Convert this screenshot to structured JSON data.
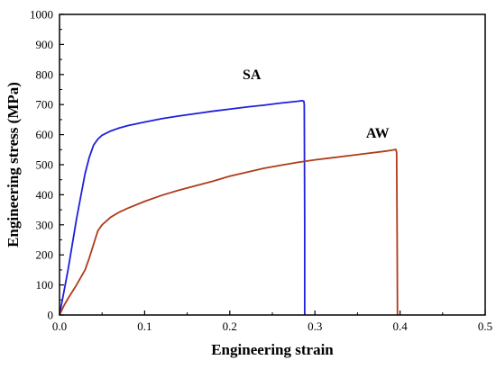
{
  "chart_data": {
    "type": "line",
    "xlabel": "Engineering strain",
    "ylabel": "Engineering stress (MPa)",
    "xlim": [
      0.0,
      0.5
    ],
    "ylim": [
      0,
      1000
    ],
    "xticks": [
      "0.0",
      "0.1",
      "0.2",
      "0.3",
      "0.4",
      "0.5"
    ],
    "yticks": [
      "0",
      "100",
      "200",
      "300",
      "400",
      "500",
      "600",
      "700",
      "800",
      "900",
      "1000"
    ],
    "grid": false,
    "series": [
      {
        "name": "SA",
        "color": "#1f1fdc",
        "label_pos": [
          0.215,
          785
        ],
        "x": [
          0.0,
          0.01,
          0.02,
          0.03,
          0.035,
          0.04,
          0.045,
          0.05,
          0.06,
          0.07,
          0.08,
          0.1,
          0.12,
          0.14,
          0.16,
          0.18,
          0.2,
          0.22,
          0.24,
          0.26,
          0.27,
          0.28,
          0.285,
          0.287,
          0.2875,
          0.288,
          0.288
        ],
        "y": [
          0,
          150,
          320,
          470,
          525,
          565,
          585,
          598,
          612,
          622,
          630,
          642,
          653,
          662,
          670,
          678,
          685,
          692,
          698,
          705,
          708,
          711,
          713,
          711,
          700,
          300,
          0
        ]
      },
      {
        "name": "AW",
        "color": "#b03a1a",
        "label_pos": [
          0.36,
          590
        ],
        "x": [
          0.0,
          0.005,
          0.01,
          0.02,
          0.03,
          0.035,
          0.04,
          0.045,
          0.05,
          0.06,
          0.07,
          0.08,
          0.1,
          0.12,
          0.14,
          0.16,
          0.18,
          0.2,
          0.22,
          0.24,
          0.26,
          0.28,
          0.3,
          0.32,
          0.34,
          0.36,
          0.38,
          0.39,
          0.395,
          0.396,
          0.3965,
          0.397
        ],
        "y": [
          0,
          30,
          55,
          100,
          150,
          190,
          235,
          280,
          300,
          325,
          342,
          355,
          378,
          398,
          415,
          430,
          445,
          462,
          475,
          488,
          498,
          508,
          516,
          523,
          530,
          537,
          544,
          548,
          551,
          540,
          300,
          0
        ]
      }
    ]
  }
}
